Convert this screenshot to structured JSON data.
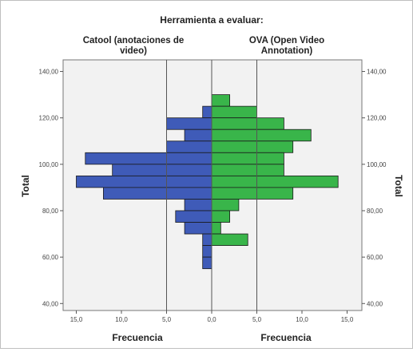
{
  "chart_data": {
    "type": "bar",
    "orientation": "horizontal-back-to-back",
    "title": "Herramienta a evaluar:",
    "panels": [
      {
        "name": "Catool (anotaciones de video)",
        "header_lines": [
          "Catool (anotaciones de",
          "video)"
        ],
        "xlabel": "Frecuencia",
        "color": "#3f5bb8",
        "bins": [
          {
            "y": 120,
            "value": 1
          },
          {
            "y": 115,
            "value": 5
          },
          {
            "y": 110,
            "value": 3
          },
          {
            "y": 105,
            "value": 5
          },
          {
            "y": 100,
            "value": 14
          },
          {
            "y": 95,
            "value": 11
          },
          {
            "y": 90,
            "value": 15
          },
          {
            "y": 85,
            "value": 12
          },
          {
            "y": 80,
            "value": 3
          },
          {
            "y": 75,
            "value": 4
          },
          {
            "y": 70,
            "value": 3
          },
          {
            "y": 65,
            "value": 1
          },
          {
            "y": 60,
            "value": 1
          },
          {
            "y": 55,
            "value": 1
          }
        ]
      },
      {
        "name": "OVA (Open Video Annotation)",
        "header_lines": [
          "OVA (Open Video",
          "Annotation)"
        ],
        "xlabel": "Frecuencia",
        "color": "#39b54a",
        "bins": [
          {
            "y": 125,
            "value": 2
          },
          {
            "y": 120,
            "value": 5
          },
          {
            "y": 115,
            "value": 8
          },
          {
            "y": 110,
            "value": 11
          },
          {
            "y": 105,
            "value": 9
          },
          {
            "y": 100,
            "value": 8
          },
          {
            "y": 95,
            "value": 8
          },
          {
            "y": 90,
            "value": 14
          },
          {
            "y": 85,
            "value": 9
          },
          {
            "y": 80,
            "value": 3
          },
          {
            "y": 75,
            "value": 2
          },
          {
            "y": 70,
            "value": 1
          },
          {
            "y": 65,
            "value": 4
          }
        ]
      }
    ],
    "bin_width": 5,
    "ylabel": "Total",
    "ylim": [
      37,
      145
    ],
    "yticks": [
      40,
      60,
      80,
      100,
      120,
      140
    ],
    "ytick_labels": [
      "40,00",
      "60,00",
      "80,00",
      "100,00",
      "120,00",
      "140,00"
    ],
    "xlim_per_side": [
      0,
      16.5
    ],
    "xticks": [
      15,
      10,
      5,
      0,
      5,
      10,
      15
    ],
    "xtick_labels": [
      "15,0",
      "10,0",
      "5,0",
      "0,0",
      "5,0",
      "10,0",
      "15,0"
    ],
    "reference_lines_at": [
      5,
      0,
      5
    ],
    "plot_background": "#f2f2f2",
    "grid": false,
    "legend": "none"
  }
}
